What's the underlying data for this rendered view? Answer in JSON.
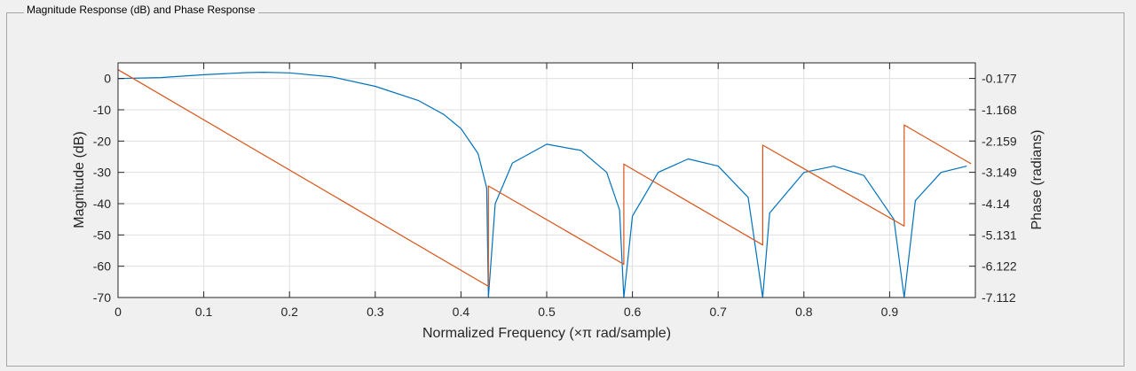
{
  "panel": {
    "title": "Magnitude Response (dB) and Phase Response"
  },
  "chart_data": {
    "type": "line",
    "xlabel": "Normalized Frequency (×π rad/sample)",
    "ylabel_left": "Magnitude (dB)",
    "ylabel_right": "Phase (radians)",
    "xlim": [
      0,
      1
    ],
    "ylim_left": [
      -70,
      5
    ],
    "ylim_right": [
      -7.112,
      0.315
    ],
    "x_ticks": [
      "0",
      "0.1",
      "0.2",
      "0.3",
      "0.4",
      "0.5",
      "0.6",
      "0.7",
      "0.8",
      "0.9"
    ],
    "y_left_ticks": [
      "0",
      "-10",
      "-20",
      "-30",
      "-40",
      "-50",
      "-60",
      "-70"
    ],
    "y_right_ticks": [
      "-0.177",
      "-1.168",
      "-2.159",
      "-3.149",
      "-4.14",
      "-5.131",
      "-6.122",
      "-7.112"
    ],
    "grid": true,
    "colors": {
      "magnitude": "#0072bd",
      "phase": "#d95319"
    },
    "series": [
      {
        "axis": "left",
        "x": [
          0,
          0.05,
          0.1,
          0.15,
          0.17,
          0.2,
          0.25,
          0.3,
          0.35,
          0.38,
          0.4,
          0.42,
          0.43,
          0.432,
          0.44,
          0.46,
          0.5,
          0.54,
          0.57,
          0.585,
          0.59,
          0.6,
          0.63,
          0.665,
          0.7,
          0.735,
          0.752,
          0.76,
          0.8,
          0.835,
          0.87,
          0.905,
          0.917,
          0.93,
          0.96,
          0.99
        ],
        "values": [
          0,
          0.3,
          1.2,
          1.9,
          2.0,
          1.8,
          0.5,
          -2.5,
          -7,
          -11.5,
          -16,
          -24,
          -35,
          -70,
          -40,
          -27,
          -21,
          -23,
          -30,
          -42,
          -70,
          -44,
          -30,
          -25.7,
          -28,
          -38,
          -70,
          -43,
          -30,
          -28,
          -31,
          -45,
          -70,
          -39,
          -30,
          -28
        ]
      },
      {
        "axis": "right",
        "x": [
          0,
          0.432,
          0.432,
          0.59,
          0.59,
          0.752,
          0.752,
          0.917,
          0.917,
          0.995
        ],
        "values": [
          0.1,
          -6.76,
          -3.58,
          -6.06,
          -2.89,
          -5.45,
          -2.29,
          -4.85,
          -1.65,
          -2.88
        ]
      }
    ]
  }
}
